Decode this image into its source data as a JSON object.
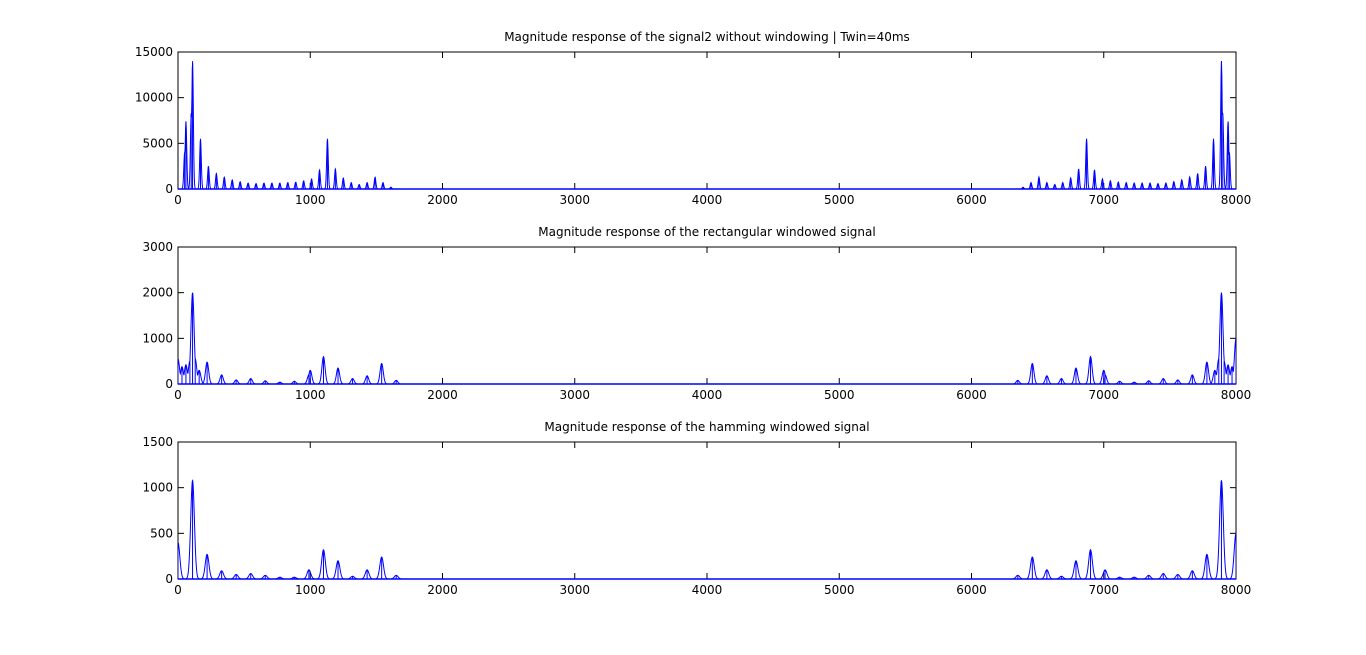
{
  "chart_data": [
    {
      "type": "line",
      "title": "Magnitude response of the signal2 without windowing | Twin=40ms",
      "xlabel": "",
      "ylabel": "",
      "xlim": [
        0,
        8000
      ],
      "ylim": [
        0,
        15000
      ],
      "xticks": [
        0,
        1000,
        2000,
        3000,
        4000,
        5000,
        6000,
        7000,
        8000
      ],
      "yticks": [
        0,
        5000,
        10000,
        15000
      ],
      "grid": false,
      "legend": "none",
      "color": "#0000ff",
      "series": [
        {
          "style": "spikes",
          "width_hz": 6,
          "peaks": [
            [
              50,
              4000
            ],
            [
              60,
              7400
            ],
            [
              100,
              8300
            ],
            [
              110,
              14000
            ],
            [
              170,
              5500
            ],
            [
              230,
              2500
            ],
            [
              290,
              1700
            ],
            [
              350,
              1300
            ],
            [
              410,
              1000
            ],
            [
              470,
              800
            ],
            [
              530,
              650
            ],
            [
              590,
              600
            ],
            [
              650,
              650
            ],
            [
              710,
              650
            ],
            [
              770,
              650
            ],
            [
              830,
              700
            ],
            [
              890,
              750
            ],
            [
              950,
              900
            ],
            [
              1010,
              1100
            ],
            [
              1070,
              2100
            ],
            [
              1130,
              5500
            ],
            [
              1190,
              2200
            ],
            [
              1250,
              1200
            ],
            [
              1310,
              700
            ],
            [
              1370,
              500
            ],
            [
              1430,
              700
            ],
            [
              1490,
              1300
            ],
            [
              1550,
              700
            ],
            [
              1610,
              200
            ],
            [
              6390,
              200
            ],
            [
              6450,
              700
            ],
            [
              6510,
              1300
            ],
            [
              6570,
              700
            ],
            [
              6630,
              500
            ],
            [
              6690,
              700
            ],
            [
              6750,
              1200
            ],
            [
              6810,
              2200
            ],
            [
              6870,
              5500
            ],
            [
              6930,
              2100
            ],
            [
              6990,
              1100
            ],
            [
              7050,
              900
            ],
            [
              7110,
              750
            ],
            [
              7170,
              700
            ],
            [
              7230,
              650
            ],
            [
              7290,
              650
            ],
            [
              7350,
              650
            ],
            [
              7410,
              600
            ],
            [
              7470,
              650
            ],
            [
              7530,
              800
            ],
            [
              7590,
              1000
            ],
            [
              7650,
              1300
            ],
            [
              7710,
              1700
            ],
            [
              7770,
              2500
            ],
            [
              7830,
              5500
            ],
            [
              7890,
              14000
            ],
            [
              7900,
              8300
            ],
            [
              7940,
              7400
            ],
            [
              7950,
              4000
            ]
          ]
        }
      ]
    },
    {
      "type": "line",
      "title": "Magnitude response of the rectangular windowed signal",
      "xlabel": "",
      "ylabel": "",
      "xlim": [
        0,
        8000
      ],
      "ylim": [
        0,
        3000
      ],
      "xticks": [
        0,
        1000,
        2000,
        3000,
        4000,
        5000,
        6000,
        7000,
        8000
      ],
      "yticks": [
        0,
        1000,
        2000,
        3000
      ],
      "grid": false,
      "legend": "none",
      "color": "#0000ff",
      "series": [
        {
          "style": "lobes",
          "width_hz": 12,
          "noise_floor": 120,
          "noise_band": [
            0,
            160
          ],
          "peaks": [
            [
              0,
              550
            ],
            [
              30,
              380
            ],
            [
              60,
              420
            ],
            [
              90,
              500
            ],
            [
              110,
              2000
            ],
            [
              130,
              550
            ],
            [
              160,
              300
            ],
            [
              220,
              480
            ],
            [
              330,
              200
            ],
            [
              440,
              90
            ],
            [
              550,
              120
            ],
            [
              660,
              70
            ],
            [
              770,
              40
            ],
            [
              880,
              60
            ],
            [
              990,
              200
            ],
            [
              1000,
              300
            ],
            [
              1100,
              600
            ],
            [
              1210,
              350
            ],
            [
              1320,
              120
            ],
            [
              1430,
              180
            ],
            [
              1540,
              450
            ],
            [
              1650,
              80
            ],
            [
              6350,
              80
            ],
            [
              6460,
              450
            ],
            [
              6570,
              180
            ],
            [
              6680,
              120
            ],
            [
              6790,
              350
            ],
            [
              6900,
              600
            ],
            [
              7000,
              300
            ],
            [
              7010,
              200
            ],
            [
              7120,
              60
            ],
            [
              7230,
              40
            ],
            [
              7340,
              70
            ],
            [
              7450,
              120
            ],
            [
              7560,
              90
            ],
            [
              7670,
              200
            ],
            [
              7780,
              480
            ],
            [
              7840,
              300
            ],
            [
              7870,
              550
            ],
            [
              7890,
              2000
            ],
            [
              7910,
              500
            ],
            [
              7940,
              420
            ],
            [
              7970,
              380
            ],
            [
              8000,
              1000
            ]
          ]
        }
      ]
    },
    {
      "type": "line",
      "title": "Magnitude response of the hamming windowed signal",
      "xlabel": "",
      "ylabel": "",
      "xlim": [
        0,
        8000
      ],
      "ylim": [
        0,
        1500
      ],
      "xticks": [
        0,
        1000,
        2000,
        3000,
        4000,
        5000,
        6000,
        7000,
        8000
      ],
      "yticks": [
        0,
        500,
        1000,
        1500
      ],
      "grid": false,
      "legend": "none",
      "color": "#0000ff",
      "series": [
        {
          "style": "lobes",
          "width_hz": 14,
          "noise_floor": 0,
          "noise_band": [
            0,
            0
          ],
          "peaks": [
            [
              0,
              400
            ],
            [
              110,
              1080
            ],
            [
              220,
              270
            ],
            [
              330,
              90
            ],
            [
              440,
              50
            ],
            [
              550,
              60
            ],
            [
              660,
              40
            ],
            [
              770,
              20
            ],
            [
              880,
              20
            ],
            [
              990,
              100
            ],
            [
              1100,
              320
            ],
            [
              1210,
              200
            ],
            [
              1320,
              30
            ],
            [
              1430,
              100
            ],
            [
              1540,
              240
            ],
            [
              1650,
              40
            ],
            [
              6350,
              40
            ],
            [
              6460,
              240
            ],
            [
              6570,
              100
            ],
            [
              6680,
              30
            ],
            [
              6790,
              200
            ],
            [
              6900,
              320
            ],
            [
              7010,
              100
            ],
            [
              7120,
              20
            ],
            [
              7230,
              20
            ],
            [
              7340,
              40
            ],
            [
              7450,
              60
            ],
            [
              7560,
              50
            ],
            [
              7670,
              90
            ],
            [
              7780,
              270
            ],
            [
              7890,
              1080
            ],
            [
              8000,
              500
            ]
          ]
        }
      ]
    }
  ]
}
